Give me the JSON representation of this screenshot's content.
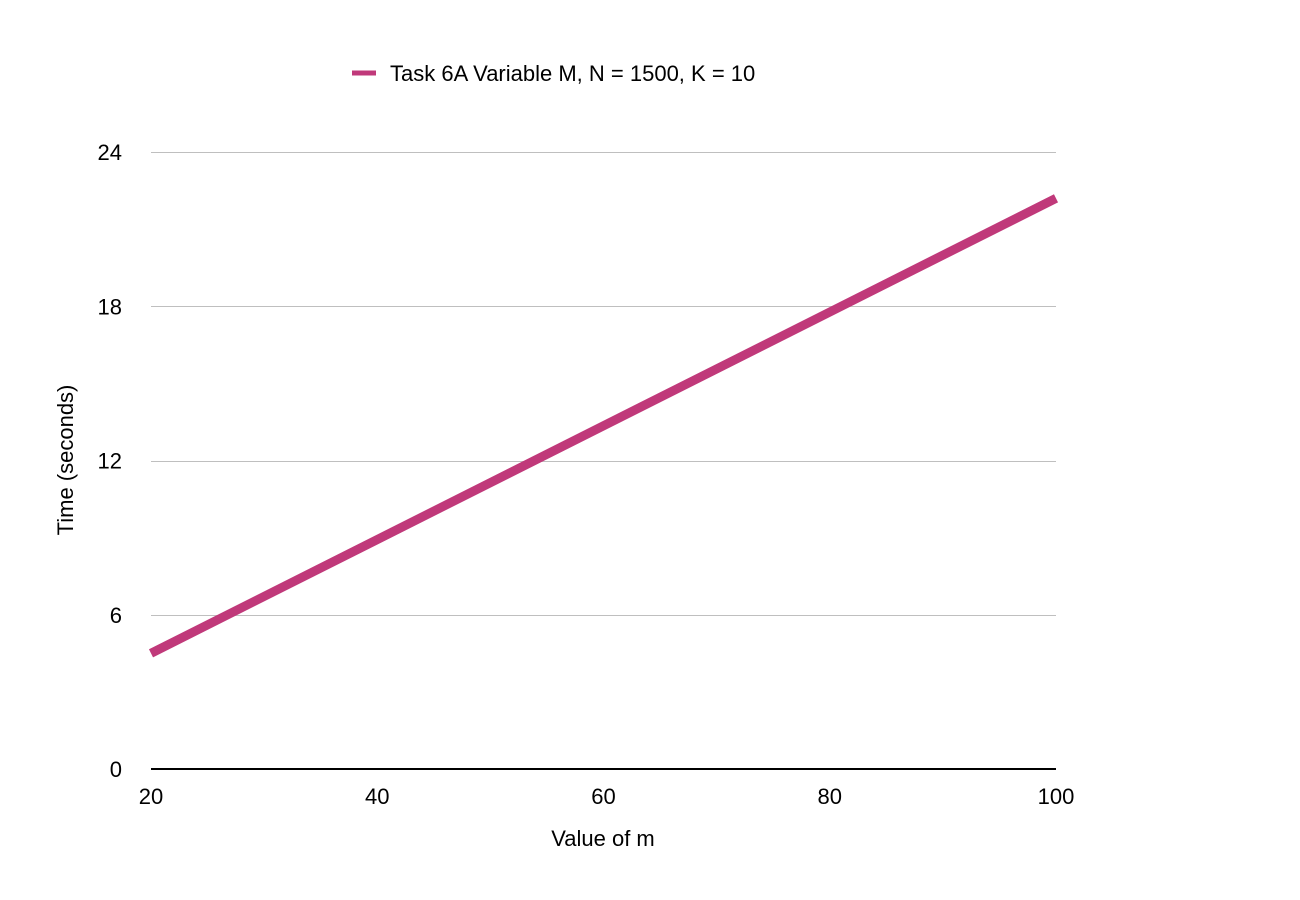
{
  "colors": {
    "series": "#C0397A",
    "grid": "#BFBFBF",
    "axis": "#000000",
    "background": "#FFFFFF"
  },
  "chart_data": {
    "type": "line",
    "title": "",
    "xlabel": "Value of m",
    "ylabel": "Time (seconds)",
    "xlim": [
      20,
      100
    ],
    "ylim": [
      0,
      24
    ],
    "xticks": [
      20,
      40,
      60,
      80,
      100
    ],
    "yticks": [
      0,
      6,
      12,
      18,
      24
    ],
    "x_tick_labels": [
      "20",
      "40",
      "60",
      "80",
      "100"
    ],
    "y_tick_labels": [
      "0",
      "6",
      "12",
      "18",
      "24"
    ],
    "grid": "horizontal",
    "legend_position": "top-center",
    "series": [
      {
        "name": "Task 6A Variable M, N = 1500, K = 10",
        "x": [
          20,
          100
        ],
        "y": [
          4.5,
          22.2
        ]
      }
    ]
  }
}
